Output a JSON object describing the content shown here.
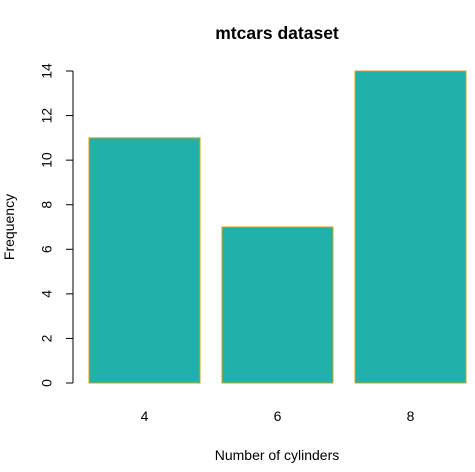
{
  "chart_data": {
    "type": "bar",
    "title": "mtcars dataset",
    "xlabel": "Number of cylinders",
    "ylabel": "Frequency",
    "categories": [
      "4",
      "6",
      "8"
    ],
    "values": [
      11,
      7,
      14
    ],
    "ylim": [
      0,
      14
    ],
    "yticks": [
      "0",
      "2",
      "4",
      "6",
      "8",
      "10",
      "12",
      "14"
    ],
    "grid": false,
    "bar_fill": "#20B2AA",
    "bar_border": "#D4A017"
  }
}
